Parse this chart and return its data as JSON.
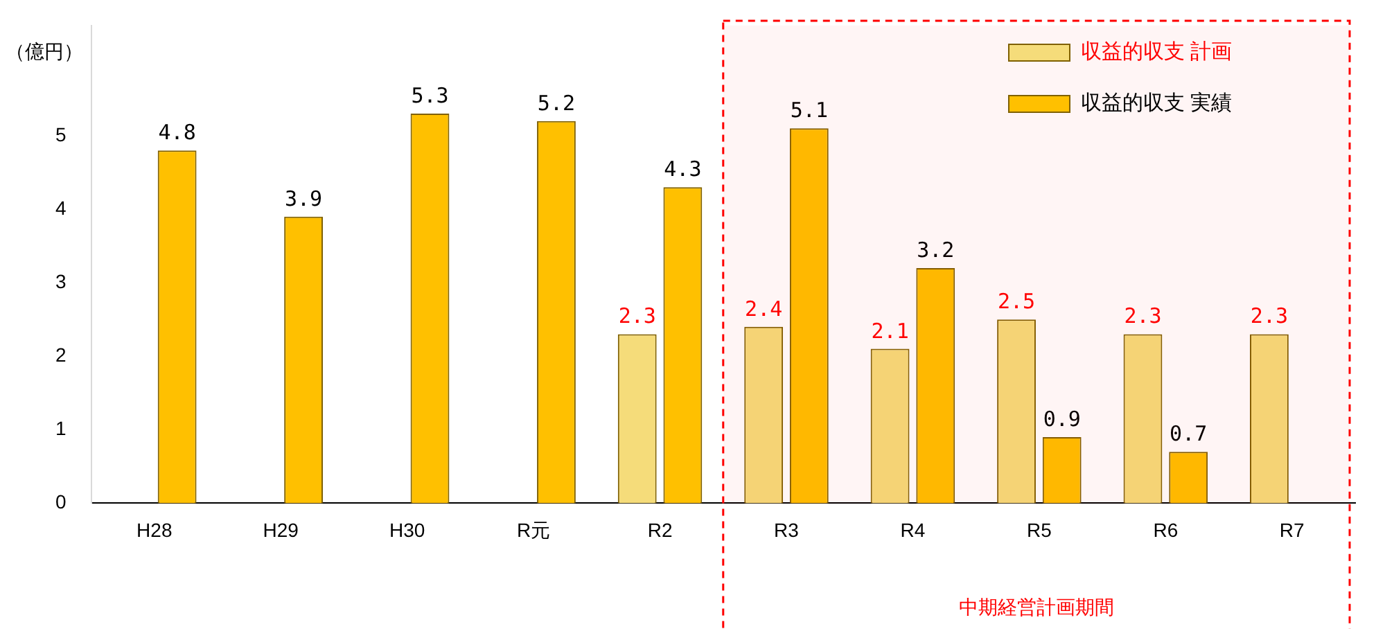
{
  "chart_data": {
    "type": "bar",
    "ylabel": "（億円）",
    "categories": [
      "H28",
      "H29",
      "H30",
      "R元",
      "R2",
      "R3",
      "R4",
      "R5",
      "R6",
      "R7"
    ],
    "series": [
      {
        "name": "収益的収支 計画",
        "color": "#f5dc7a",
        "values": [
          null,
          null,
          null,
          null,
          2.3,
          2.4,
          2.1,
          2.5,
          2.3,
          2.3
        ]
      },
      {
        "name": "収益的収支 実績",
        "color": "#ffc000",
        "values": [
          4.8,
          3.9,
          5.3,
          5.2,
          4.3,
          5.1,
          3.2,
          0.9,
          0.7,
          null
        ]
      }
    ],
    "ylim": [
      0,
      6.5
    ],
    "yticks": [
      0,
      1,
      2,
      3,
      4,
      5
    ],
    "grid": false,
    "legend": "top right",
    "data_labels": true,
    "bands": [
      {
        "axis": "x",
        "from": "R3",
        "to": "R7",
        "label": "中期経営計画期間",
        "color": "#ff0000"
      }
    ]
  }
}
